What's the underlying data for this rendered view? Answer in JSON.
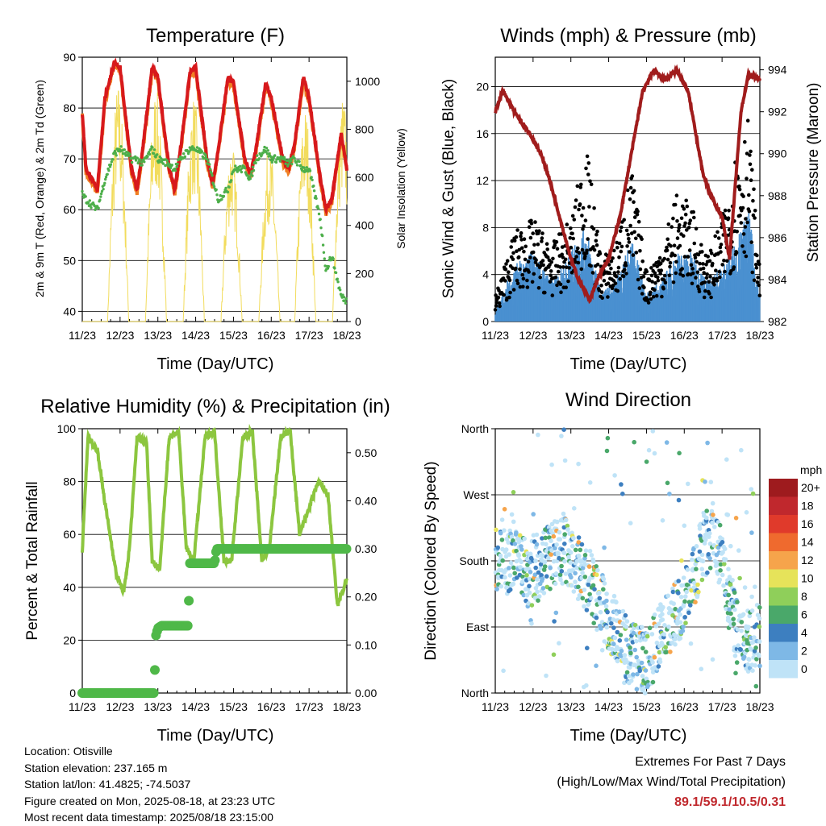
{
  "panels": {
    "temperature": {
      "title": "Temperature (F)",
      "ylabel_left": "2m & 9m T (Red, Orange) & 2m Td (Green)",
      "ylabel_right": "Solar Insolation (Yellow)",
      "xlabel": "Time (Day/UTC)"
    },
    "winds": {
      "title": "Winds (mph) & Pressure (mb)",
      "ylabel_left": "Sonic Wind & Gust (Blue, Black)",
      "ylabel_right": "Station Pressure (Maroon)",
      "xlabel": "Time (Day/UTC)"
    },
    "humidity": {
      "title": "Relative Humidity (%) & Precipitation (in)",
      "ylabel_left": "Percent & Total Rainfall",
      "xlabel": "Time (Day/UTC)"
    },
    "direction": {
      "title": "Wind Direction",
      "ylabel_left": "Direction (Colored By Speed)",
      "xlabel": "Time (Day/UTC)"
    }
  },
  "footer": {
    "location": "Location: Otisville",
    "elevation": "Station elevation: 237.165 m",
    "latlon": "Station lat/lon: 41.4825; -74.5037",
    "created": "Figure created on Mon, 2025-08-18, at 23:23 UTC",
    "recent": "Most recent data timestamp: 2025/08/18 23:15:00"
  },
  "extremes": {
    "title": "Extremes For Past 7 Days",
    "subtitle": "(High/Low/Max Wind/Total Precipitation)",
    "values": "89.1/59.1/10.5/0.31"
  },
  "colorbar": {
    "unit": "mph",
    "labels": [
      "20+",
      "18",
      "16",
      "14",
      "12",
      "10",
      "8",
      "6",
      "4",
      "2",
      "0"
    ],
    "colors": [
      "#9e1b1e",
      "#c0282d",
      "#e03a2b",
      "#ef6a2e",
      "#f6a44b",
      "#e6e35a",
      "#8fcf5a",
      "#4aa86a",
      "#3d7fc0",
      "#7eb8e6",
      "#bfe3f7"
    ]
  },
  "colors": {
    "temp_2m": "#d7191c",
    "temp_9m": "#f07f23",
    "dewpoint": "#4daf4a",
    "solar": "#f2dc5d",
    "wind": "#4a90d0",
    "gust": "#000000",
    "pressure": "#a01c1c",
    "rh": "#8cc63f",
    "precip": "#4fb848"
  },
  "chart_data": [
    {
      "type": "line",
      "title": "Temperature (F)",
      "xlabel": "Time (Day/UTC)",
      "ylabel": "2m & 9m T (Red, Orange) & 2m Td (Green)",
      "y2label": "Solar Insolation (Yellow)",
      "x_ticks": [
        "11/23",
        "12/23",
        "13/23",
        "14/23",
        "15/23",
        "16/23",
        "17/23",
        "18/23"
      ],
      "ylim": [
        38,
        90
      ],
      "y_ticks": [
        40,
        50,
        60,
        70,
        80,
        90
      ],
      "y2lim": [
        0,
        1100
      ],
      "y2_ticks": [
        0,
        200,
        400,
        600,
        800,
        1000
      ],
      "grid": true,
      "series": [
        {
          "name": "2m T",
          "x": [
            0,
            0.1,
            0.4,
            0.6,
            0.85,
            1.0,
            1.3,
            1.45,
            1.6,
            1.85,
            2.0,
            2.3,
            2.45,
            2.6,
            2.85,
            3.0,
            3.3,
            3.45,
            3.6,
            3.85,
            4.0,
            4.3,
            4.45,
            4.6,
            4.85,
            5.0,
            5.3,
            5.45,
            5.6,
            5.85,
            6.0,
            6.3,
            6.45,
            6.6,
            6.85,
            7.0
          ],
          "values": [
            79,
            68,
            64,
            82,
            89,
            88,
            68,
            64,
            72,
            88,
            86,
            68,
            64,
            72,
            87,
            88,
            70,
            65,
            72,
            86,
            85,
            70,
            67,
            72,
            85,
            82,
            70,
            68,
            72,
            86,
            82,
            66,
            60,
            62,
            75,
            68
          ]
        },
        {
          "name": "2m Td",
          "x": [
            0,
            0.1,
            0.4,
            0.6,
            0.85,
            1.0,
            1.3,
            1.45,
            1.6,
            1.85,
            2.0,
            2.3,
            2.45,
            2.6,
            2.85,
            3.0,
            3.3,
            3.45,
            3.6,
            3.85,
            4.0,
            4.3,
            4.45,
            4.6,
            4.85,
            5.0,
            5.3,
            5.45,
            5.6,
            5.85,
            6.0,
            6.3,
            6.45,
            6.6,
            6.85,
            7.0
          ],
          "values": [
            63,
            62,
            60,
            66,
            71,
            72,
            70,
            70,
            69,
            72,
            70,
            69,
            68,
            70,
            72,
            72,
            70,
            66,
            62,
            64,
            68,
            68,
            66,
            70,
            72,
            70,
            70,
            69,
            70,
            68,
            68,
            58,
            48,
            51,
            43,
            42
          ]
        },
        {
          "name": "Solar Insolation",
          "peaks_x": [
            0.95,
            1.95,
            2.95,
            3.95,
            4.95,
            5.9,
            6.9
          ],
          "peaks": [
            1000,
            980,
            950,
            760,
            740,
            900,
            950
          ]
        }
      ]
    },
    {
      "type": "line",
      "title": "Winds (mph) & Pressure (mb)",
      "xlabel": "Time (Day/UTC)",
      "ylabel": "Sonic Wind & Gust (Blue, Black)",
      "y2label": "Station Pressure (Maroon)",
      "x_ticks": [
        "11/23",
        "12/23",
        "13/23",
        "14/23",
        "15/23",
        "16/23",
        "17/23",
        "18/23"
      ],
      "ylim": [
        0,
        22.5
      ],
      "y_ticks": [
        0,
        4,
        8,
        12,
        16,
        20
      ],
      "y2lim": [
        982,
        994.6
      ],
      "y2_ticks": [
        982,
        984,
        986,
        988,
        990,
        992,
        994
      ],
      "grid": true,
      "series": [
        {
          "name": "Station Pressure",
          "x": [
            0,
            0.2,
            0.5,
            0.9,
            1.2,
            1.4,
            1.7,
            2.0,
            2.2,
            2.5,
            2.7,
            3.0,
            3.3,
            3.6,
            3.9,
            4.2,
            4.5,
            4.8,
            5.1,
            5.3,
            5.5,
            5.7,
            6.0,
            6.2,
            6.5,
            6.7,
            7.0
          ],
          "values": [
            992,
            993,
            992,
            991,
            990,
            989,
            987,
            985,
            984,
            983,
            984,
            985,
            987,
            990,
            993,
            994,
            993.5,
            994,
            993,
            991,
            989,
            988,
            987,
            985,
            992,
            993.8,
            993.5
          ]
        },
        {
          "name": "Wind Gust",
          "x": [
            0,
            0.5,
            1.0,
            1.5,
            2.0,
            2.4,
            2.8,
            3.2,
            3.6,
            4.0,
            4.4,
            4.8,
            5.2,
            5.6,
            6.0,
            6.4,
            6.7,
            7.0
          ],
          "values": [
            2,
            7,
            8,
            6,
            8,
            14,
            5,
            6,
            12,
            4,
            6,
            10,
            9,
            5,
            8,
            14,
            16,
            4
          ]
        },
        {
          "name": "Sonic Wind",
          "x": [
            0,
            0.5,
            1.0,
            1.5,
            2.0,
            2.4,
            2.8,
            3.2,
            3.6,
            4.0,
            4.4,
            4.8,
            5.2,
            5.6,
            6.0,
            6.4,
            6.7,
            7.0
          ],
          "values": [
            1,
            4,
            5,
            3,
            5,
            7,
            2,
            3,
            6,
            2,
            3,
            5,
            5,
            3,
            4,
            6,
            8,
            2
          ]
        }
      ]
    },
    {
      "type": "line",
      "title": "Relative Humidity (%) & Precipitation (in)",
      "xlabel": "Time (Day/UTC)",
      "ylabel": "Percent & Total Rainfall",
      "x_ticks": [
        "11/23",
        "12/23",
        "13/23",
        "14/23",
        "15/23",
        "16/23",
        "17/23",
        "18/23"
      ],
      "ylim": [
        0,
        100
      ],
      "y_ticks": [
        0,
        20,
        40,
        60,
        80,
        100
      ],
      "y2lim": [
        0,
        0.55
      ],
      "y2_ticks": [
        "0.00",
        "0.10",
        "0.20",
        "0.30",
        "0.40",
        "0.50"
      ],
      "grid": true,
      "series": [
        {
          "name": "Relative Humidity",
          "x": [
            0,
            0.15,
            0.4,
            0.6,
            0.9,
            1.1,
            1.25,
            1.45,
            1.7,
            1.85,
            2.05,
            2.3,
            2.55,
            2.75,
            2.95,
            3.25,
            3.5,
            3.75,
            3.95,
            4.25,
            4.5,
            4.75,
            4.95,
            5.25,
            5.5,
            5.75,
            6.0,
            6.25,
            6.5,
            6.75,
            7.0
          ],
          "values": [
            54,
            97,
            92,
            72,
            45,
            38,
            55,
            97,
            95,
            50,
            47,
            97,
            99,
            55,
            50,
            97,
            99,
            50,
            50,
            97,
            99,
            50,
            55,
            97,
            99,
            60,
            70,
            80,
            75,
            33,
            43
          ]
        },
        {
          "name": "Total Rainfall",
          "x": [
            0,
            1.9,
            1.95,
            2.0,
            2.1,
            2.8,
            2.85,
            2.9,
            3.5,
            3.55,
            4.6,
            4.65,
            7.0
          ],
          "values": [
            0,
            0,
            0.12,
            0.135,
            0.14,
            0.14,
            0.27,
            0.27,
            0.27,
            0.3,
            0.3,
            0.3,
            0.3
          ]
        }
      ]
    },
    {
      "type": "scatter",
      "title": "Wind Direction",
      "xlabel": "Time (Day/UTC)",
      "ylabel": "Direction (Colored By Speed)",
      "x_ticks": [
        "11/23",
        "12/23",
        "13/23",
        "14/23",
        "15/23",
        "16/23",
        "17/23",
        "18/23"
      ],
      "y_ticks": [
        "North",
        "East",
        "South",
        "West",
        "North"
      ],
      "ylim": [
        0,
        360
      ],
      "grid": true,
      "series": [
        {
          "name": "Direction",
          "x": [
            0.4,
            0.5,
            0.9,
            1.0,
            1.8,
            2.0,
            2.5,
            3.0,
            3.5,
            4.0,
            4.5,
            5.0,
            5.5,
            5.8,
            6.5,
            6.7,
            6.9
          ],
          "values": [
            180,
            190,
            160,
            170,
            200,
            185,
            150,
            100,
            60,
            40,
            90,
            120,
            200,
            220,
            60,
            70,
            80
          ]
        }
      ]
    }
  ]
}
